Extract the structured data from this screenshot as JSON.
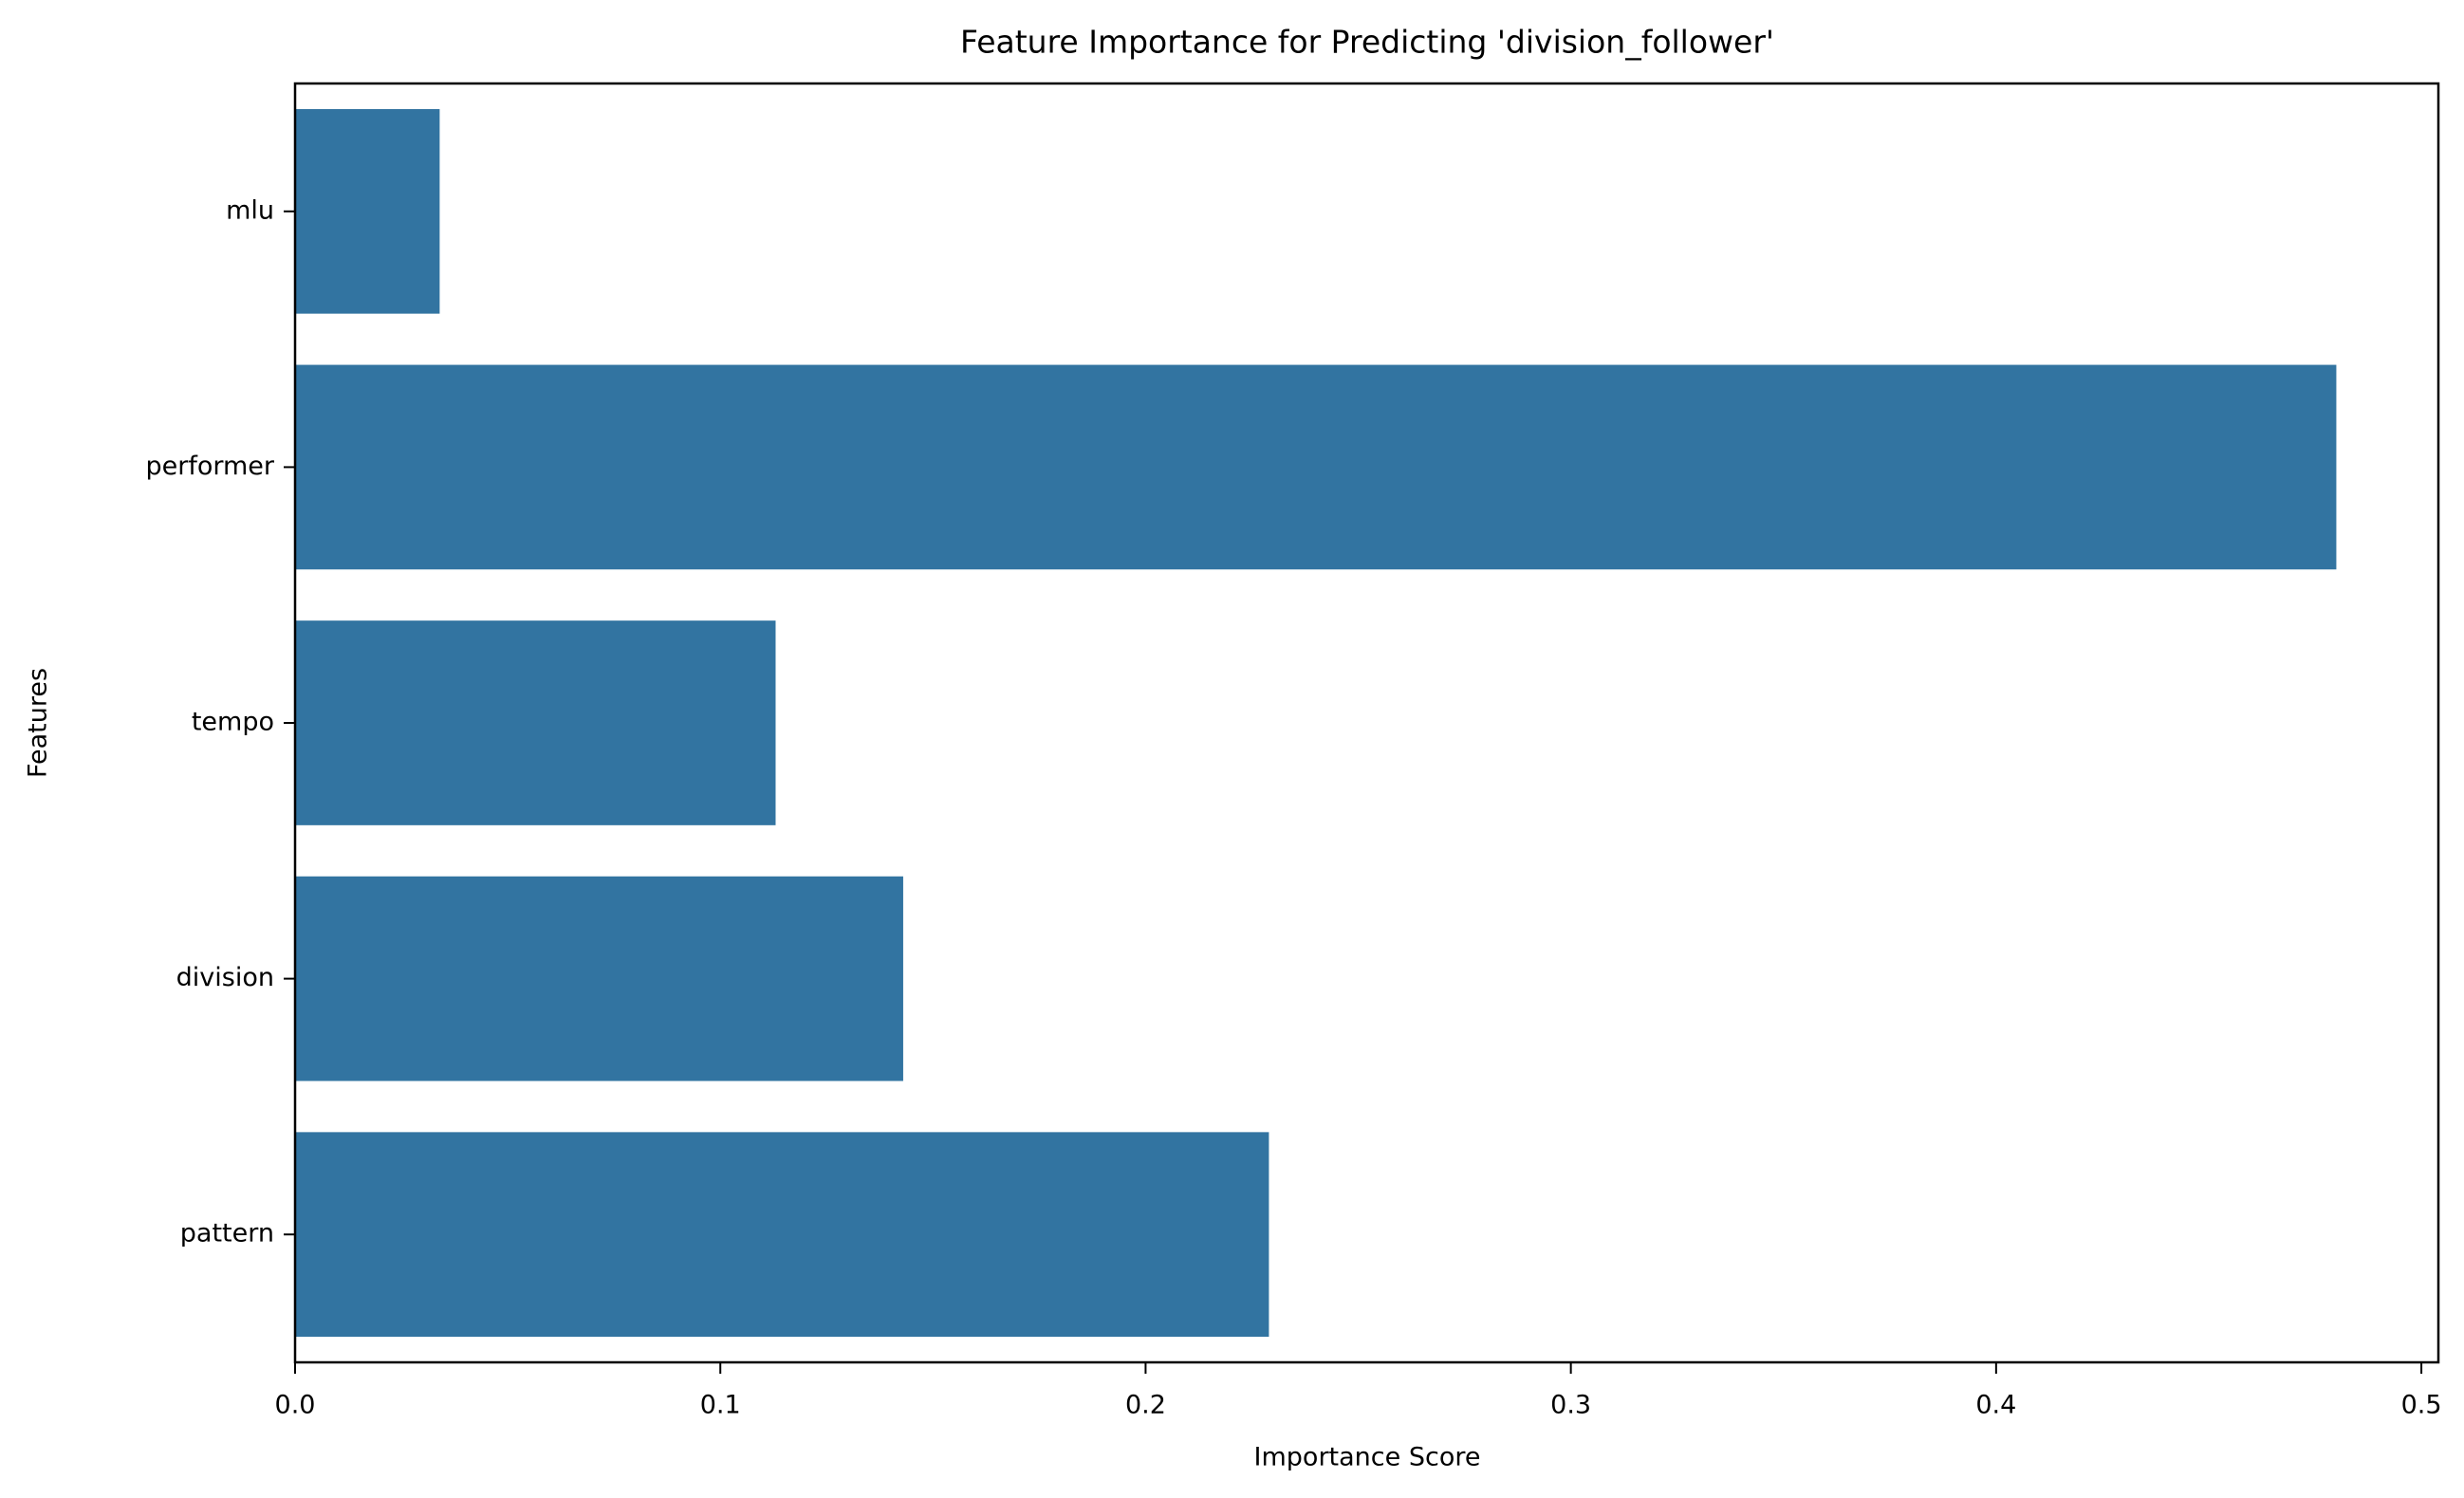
{
  "chart_data": {
    "type": "barh",
    "title": "Feature Importance for Predicting 'division_follower'",
    "xlabel": "Importance Score",
    "ylabel": "Features",
    "categories": [
      "mlu",
      "performer",
      "tempo",
      "division",
      "pattern"
    ],
    "values": [
      0.034,
      0.48,
      0.113,
      0.143,
      0.229
    ],
    "color": "#3274a1",
    "xlim": [
      0,
      0.504
    ],
    "xticks": [
      {
        "value": 0,
        "label": "0.0"
      },
      0.1,
      0.2,
      0.3,
      0.4,
      0.5
    ],
    "grid": false
  }
}
